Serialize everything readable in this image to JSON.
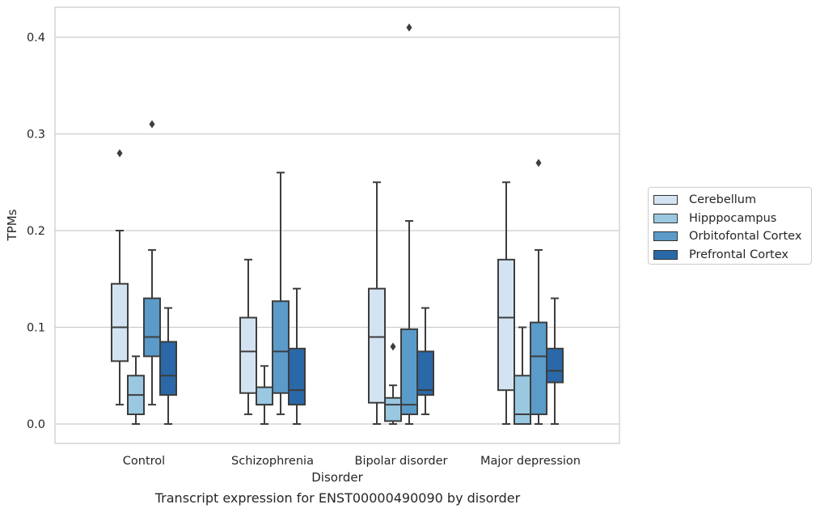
{
  "chart_data": {
    "type": "box",
    "xlabel": "Disorder",
    "ylabel": "TPMs",
    "ylim": [
      -0.02,
      0.43
    ],
    "yticks": [
      0.0,
      0.1,
      0.2,
      0.3,
      0.4
    ],
    "ytick_labels": [
      "0.0",
      "0.1",
      "0.2",
      "0.3",
      "0.4"
    ],
    "categories": [
      "Control",
      "Schizophrenia",
      "Bipolar disorder",
      "Major depression"
    ],
    "grid": "horizontal",
    "legend_position": "right",
    "series": [
      {
        "name": "Cerebellum",
        "color": "#d3e3f2",
        "boxes": [
          {
            "whislo": 0.02,
            "q1": 0.065,
            "med": 0.1,
            "q3": 0.145,
            "whishi": 0.2,
            "fliers": [
              0.28
            ]
          },
          {
            "whislo": 0.01,
            "q1": 0.032,
            "med": 0.075,
            "q3": 0.11,
            "whishi": 0.17,
            "fliers": []
          },
          {
            "whislo": 0.0,
            "q1": 0.022,
            "med": 0.09,
            "q3": 0.14,
            "whishi": 0.25,
            "fliers": []
          },
          {
            "whislo": 0.0,
            "q1": 0.035,
            "med": 0.11,
            "q3": 0.17,
            "whishi": 0.25,
            "fliers": []
          }
        ]
      },
      {
        "name": "Hipppocampus",
        "color": "#9ac8e1",
        "boxes": [
          {
            "whislo": 0.0,
            "q1": 0.01,
            "med": 0.03,
            "q3": 0.05,
            "whishi": 0.07,
            "fliers": []
          },
          {
            "whislo": 0.0,
            "q1": 0.02,
            "med": 0.02,
            "q3": 0.038,
            "whishi": 0.06,
            "fliers": []
          },
          {
            "whislo": 0.0,
            "q1": 0.003,
            "med": 0.02,
            "q3": 0.027,
            "whishi": 0.04,
            "fliers": [
              0.08
            ]
          },
          {
            "whislo": 0.0,
            "q1": 0.0,
            "med": 0.01,
            "q3": 0.05,
            "whishi": 0.1,
            "fliers": []
          }
        ]
      },
      {
        "name": "Orbitofontal Cortex",
        "color": "#5a9bc9",
        "boxes": [
          {
            "whislo": 0.02,
            "q1": 0.07,
            "med": 0.09,
            "q3": 0.13,
            "whishi": 0.18,
            "fliers": [
              0.31
            ]
          },
          {
            "whislo": 0.01,
            "q1": 0.032,
            "med": 0.075,
            "q3": 0.127,
            "whishi": 0.26,
            "fliers": []
          },
          {
            "whislo": 0.0,
            "q1": 0.01,
            "med": 0.02,
            "q3": 0.098,
            "whishi": 0.21,
            "fliers": [
              0.41
            ]
          },
          {
            "whislo": 0.0,
            "q1": 0.01,
            "med": 0.07,
            "q3": 0.105,
            "whishi": 0.18,
            "fliers": [
              0.27
            ]
          }
        ]
      },
      {
        "name": "Prefrontal Cortex",
        "color": "#2a68a8",
        "boxes": [
          {
            "whislo": 0.0,
            "q1": 0.03,
            "med": 0.05,
            "q3": 0.085,
            "whishi": 0.12,
            "fliers": []
          },
          {
            "whislo": 0.0,
            "q1": 0.02,
            "med": 0.035,
            "q3": 0.078,
            "whishi": 0.14,
            "fliers": []
          },
          {
            "whislo": 0.01,
            "q1": 0.03,
            "med": 0.035,
            "q3": 0.075,
            "whishi": 0.12,
            "fliers": []
          },
          {
            "whislo": 0.0,
            "q1": 0.043,
            "med": 0.055,
            "q3": 0.078,
            "whishi": 0.13,
            "fliers": []
          }
        ]
      }
    ]
  },
  "caption": "Transcript expression for ENST00000490090 by disorder"
}
